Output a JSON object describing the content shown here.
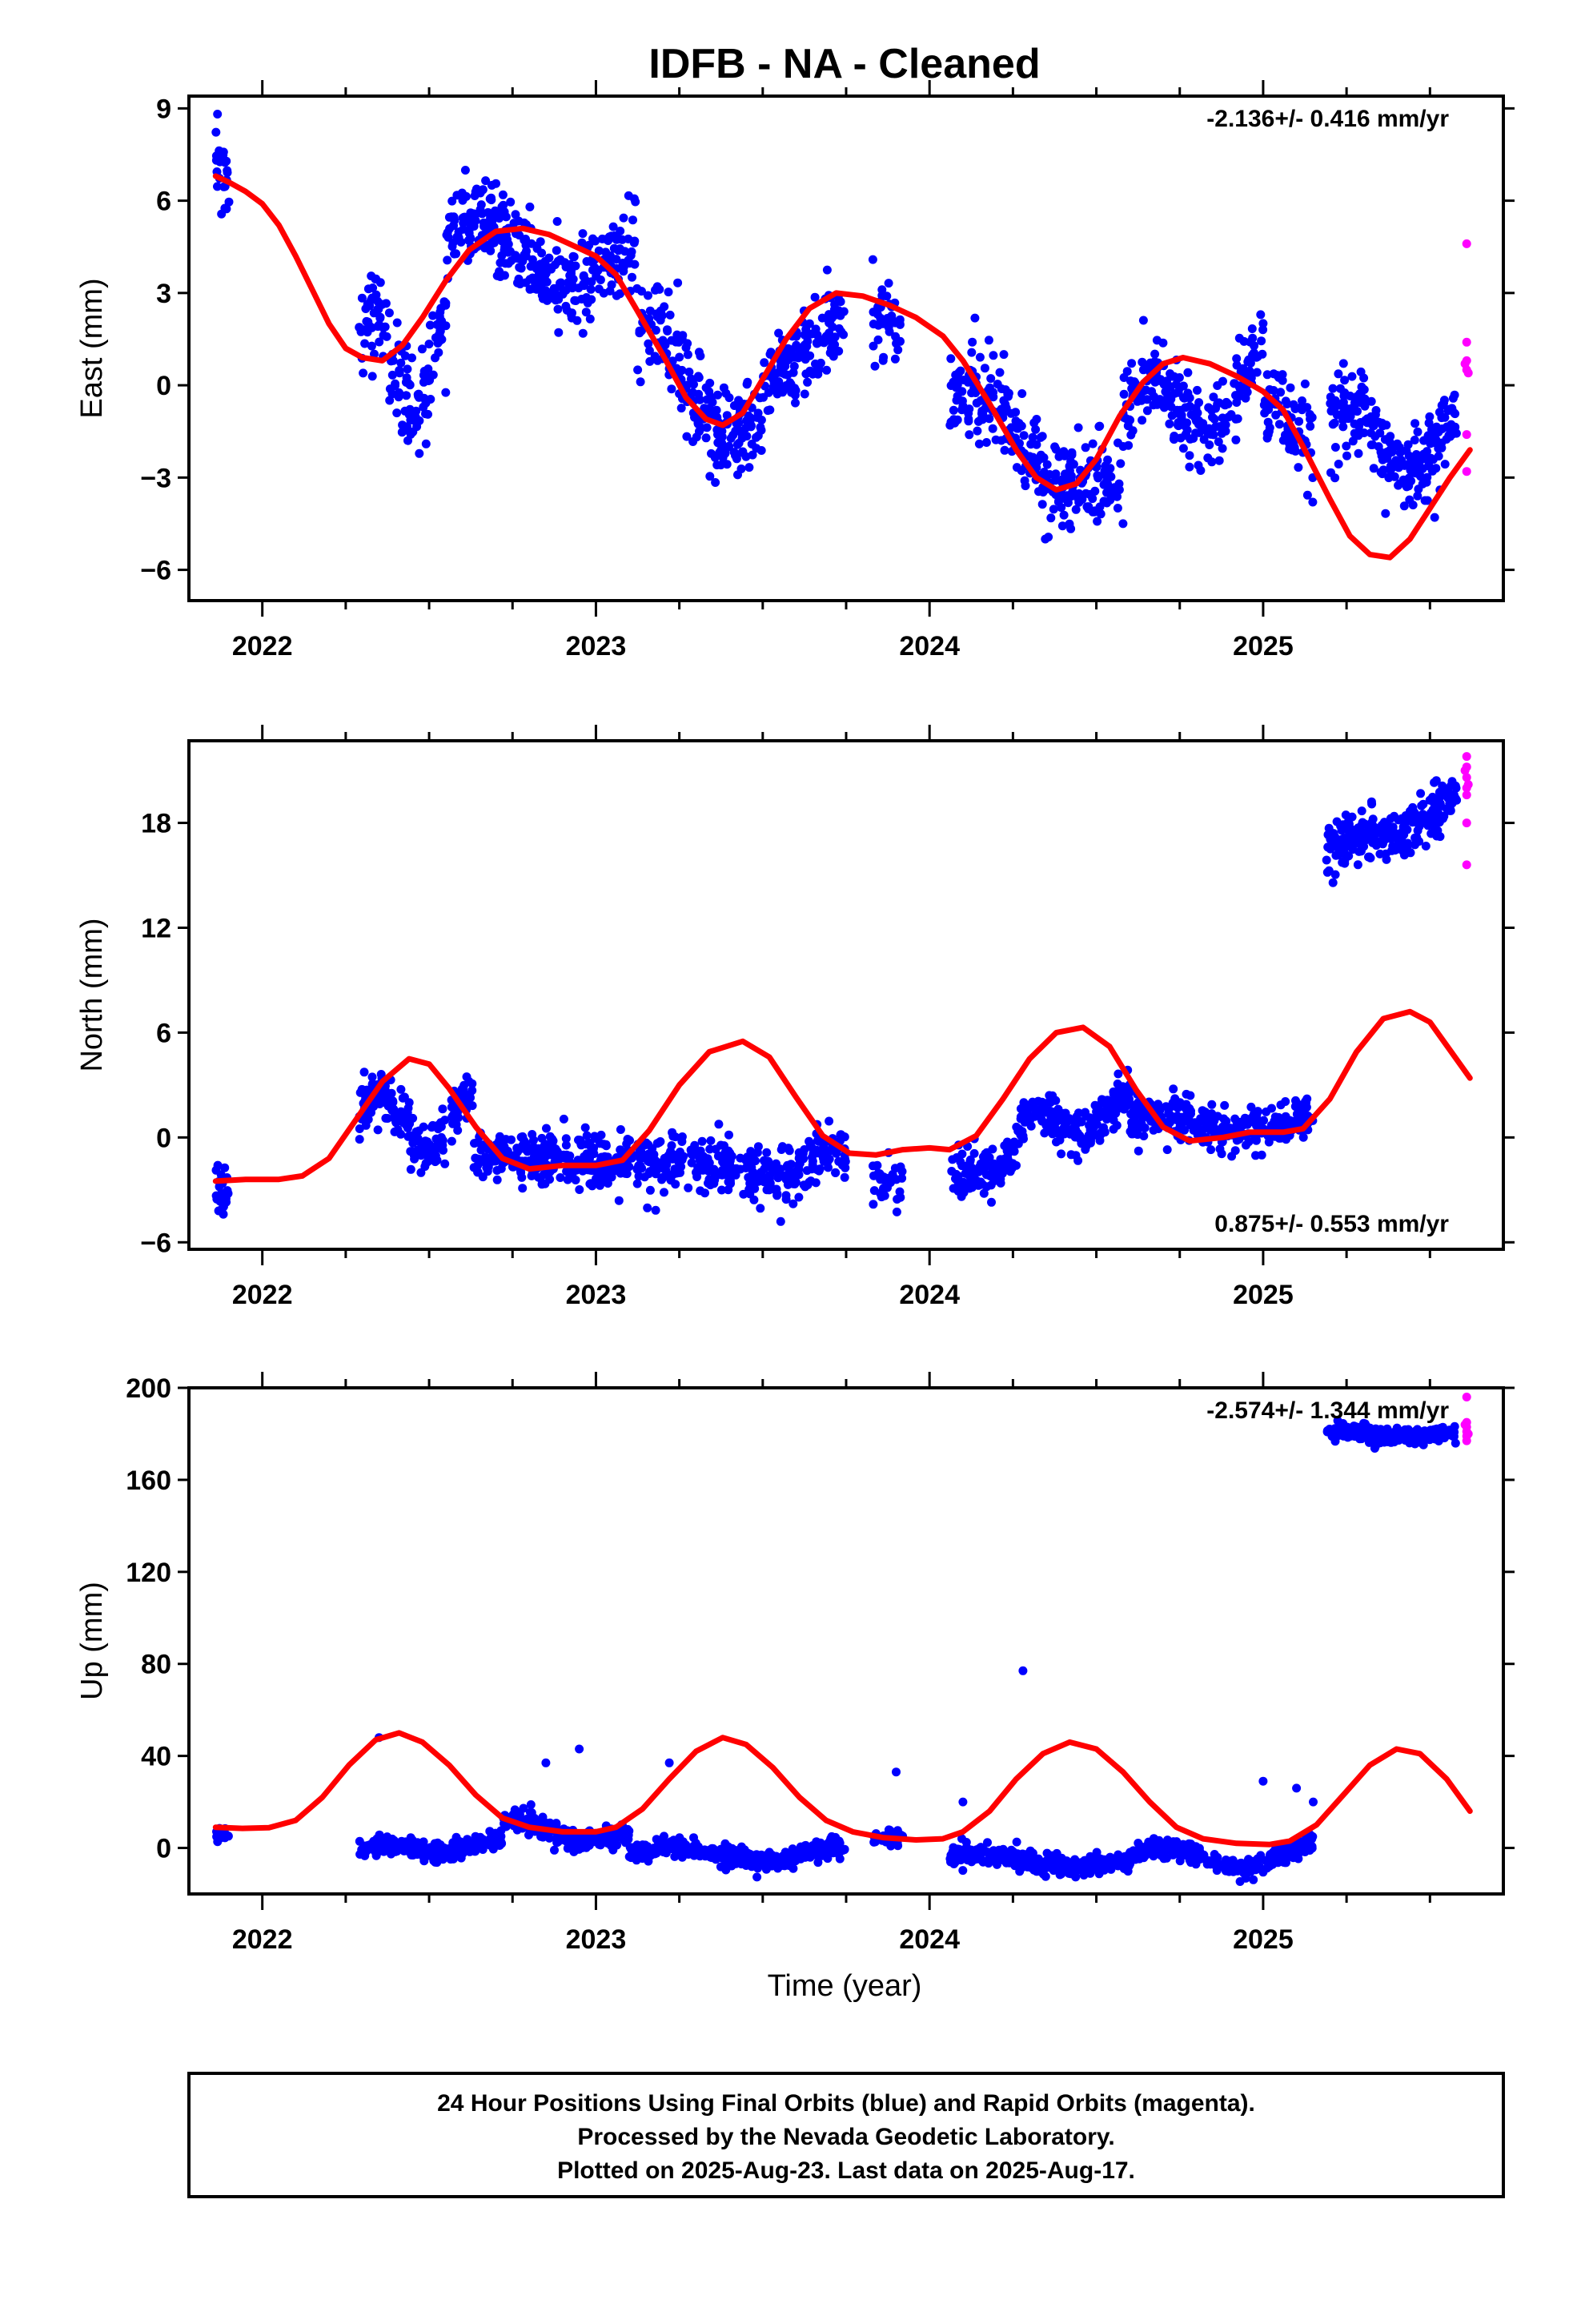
{
  "title": "IDFB  - NA - Cleaned",
  "xlabel": "Time (year)",
  "footer": [
    "24 Hour Positions Using Final Orbits (blue) and Rapid Orbits (magenta).",
    "Processed by the Nevada Geodetic Laboratory.",
    "Plotted on 2025-Aug-23. Last data on 2025-Aug-17."
  ],
  "colors": {
    "final": "#0000ff",
    "rapid": "#ff00ff",
    "model": "#ff0000",
    "frame": "#000000"
  },
  "chart_data": [
    {
      "type": "scatter",
      "ylabel": "East (mm)",
      "rate": "-2.136+/- 0.416 mm/yr",
      "rate_position": "top-right",
      "xlim": [
        2021.78,
        2025.72
      ],
      "ylim": [
        -7,
        9.4
      ],
      "yticks": [
        -6,
        -3,
        0,
        3,
        6,
        9
      ],
      "xticks": [
        2022,
        2023,
        2024,
        2025
      ],
      "model_points": [
        [
          2021.86,
          6.8
        ],
        [
          2021.9,
          6.6
        ],
        [
          2021.95,
          6.3
        ],
        [
          2022.0,
          5.9
        ],
        [
          2022.05,
          5.2
        ],
        [
          2022.1,
          4.2
        ],
        [
          2022.15,
          3.1
        ],
        [
          2022.2,
          2.0
        ],
        [
          2022.25,
          1.2
        ],
        [
          2022.3,
          0.9
        ],
        [
          2022.36,
          0.8
        ],
        [
          2022.42,
          1.3
        ],
        [
          2022.48,
          2.2
        ],
        [
          2022.55,
          3.4
        ],
        [
          2022.62,
          4.4
        ],
        [
          2022.7,
          5.0
        ],
        [
          2022.78,
          5.1
        ],
        [
          2022.86,
          4.9
        ],
        [
          2022.94,
          4.5
        ],
        [
          2023.0,
          4.2
        ],
        [
          2023.06,
          3.6
        ],
        [
          2023.12,
          2.5
        ],
        [
          2023.2,
          1.0
        ],
        [
          2023.27,
          -0.4
        ],
        [
          2023.33,
          -1.1
        ],
        [
          2023.38,
          -1.3
        ],
        [
          2023.44,
          -0.9
        ],
        [
          2023.5,
          0.2
        ],
        [
          2023.57,
          1.5
        ],
        [
          2023.64,
          2.5
        ],
        [
          2023.72,
          3.0
        ],
        [
          2023.8,
          2.9
        ],
        [
          2023.88,
          2.6
        ],
        [
          2023.96,
          2.2
        ],
        [
          2024.04,
          1.6
        ],
        [
          2024.1,
          0.8
        ],
        [
          2024.18,
          -0.6
        ],
        [
          2024.26,
          -2.1
        ],
        [
          2024.32,
          -3.0
        ],
        [
          2024.38,
          -3.4
        ],
        [
          2024.44,
          -3.2
        ],
        [
          2024.5,
          -2.4
        ],
        [
          2024.57,
          -1.0
        ],
        [
          2024.64,
          0.1
        ],
        [
          2024.7,
          0.7
        ],
        [
          2024.76,
          0.9
        ],
        [
          2024.84,
          0.7
        ],
        [
          2024.92,
          0.3
        ],
        [
          2025.0,
          -0.2
        ],
        [
          2025.06,
          -0.8
        ],
        [
          2025.12,
          -2.0
        ],
        [
          2025.2,
          -3.7
        ],
        [
          2025.26,
          -4.9
        ],
        [
          2025.32,
          -5.5
        ],
        [
          2025.38,
          -5.6
        ],
        [
          2025.44,
          -5.0
        ],
        [
          2025.5,
          -4.0
        ],
        [
          2025.56,
          -3.0
        ],
        [
          2025.62,
          -2.1
        ]
      ],
      "final_segments": [
        {
          "x0": 2021.86,
          "x1": 2021.9,
          "base": [
            7.8,
            6.4
          ],
          "amp": 0,
          "noise": 1.3,
          "n": 25
        },
        {
          "x0": 2022.29,
          "x1": 2022.55,
          "base": [
            1.2,
            0.6
          ],
          "amp": 1.4,
          "noise": 1.3,
          "n": 140
        },
        {
          "x0": 2022.55,
          "x1": 2023.12,
          "base": [
            4.6,
            3.8
          ],
          "amp": 0.8,
          "noise": 1.1,
          "n": 330
        },
        {
          "x0": 2023.12,
          "x1": 2023.5,
          "base": [
            1.8,
            -2.0
          ],
          "amp": 0.8,
          "noise": 1.4,
          "n": 200
        },
        {
          "x0": 2023.5,
          "x1": 2023.75,
          "base": [
            -0.2,
            2.2
          ],
          "amp": 0,
          "noise": 1.1,
          "n": 140
        },
        {
          "x0": 2023.83,
          "x1": 2023.92,
          "base": [
            2.5,
            1.3
          ],
          "amp": 0,
          "noise": 1.0,
          "n": 40
        },
        {
          "x0": 2024.06,
          "x1": 2024.58,
          "base": [
            -0.4,
            -3.7
          ],
          "amp": 0.8,
          "noise": 1.3,
          "n": 270
        },
        {
          "x0": 2024.58,
          "x1": 2025.0,
          "base": [
            -1.2,
            0.2
          ],
          "amp": 1.2,
          "noise": 1.0,
          "n": 230
        },
        {
          "x0": 2025.0,
          "x1": 2025.15,
          "base": [
            -0.3,
            -2.0
          ],
          "amp": 0,
          "noise": 1.2,
          "n": 70
        },
        {
          "x0": 2025.2,
          "x1": 2025.58,
          "base": [
            -1.6,
            -2.1
          ],
          "amp": 1.0,
          "noise": 1.1,
          "n": 220
        }
      ],
      "rapid_points": [
        [
          2025.61,
          4.6
        ],
        [
          2025.61,
          1.4
        ],
        [
          2025.61,
          0.8
        ],
        [
          2025.61,
          0.5
        ],
        [
          2025.61,
          -1.6
        ],
        [
          2025.61,
          -2.8
        ],
        [
          2025.605,
          0.7
        ],
        [
          2025.615,
          0.4
        ]
      ]
    },
    {
      "type": "scatter",
      "ylabel": "North (mm)",
      "rate": "0.875+/- 0.553 mm/yr",
      "rate_position": "bottom-right",
      "xlim": [
        2021.78,
        2025.72
      ],
      "ylim": [
        -6.4,
        22.7
      ],
      "yticks": [
        -6,
        0,
        6,
        12,
        18
      ],
      "xticks": [
        2022,
        2023,
        2024,
        2025
      ],
      "model_points": [
        [
          2021.86,
          -2.5
        ],
        [
          2021.95,
          -2.4
        ],
        [
          2022.05,
          -2.4
        ],
        [
          2022.12,
          -2.2
        ],
        [
          2022.2,
          -1.2
        ],
        [
          2022.28,
          1.0
        ],
        [
          2022.36,
          3.2
        ],
        [
          2022.44,
          4.5
        ],
        [
          2022.5,
          4.2
        ],
        [
          2022.56,
          2.8
        ],
        [
          2022.64,
          0.6
        ],
        [
          2022.72,
          -1.2
        ],
        [
          2022.8,
          -1.8
        ],
        [
          2022.9,
          -1.6
        ],
        [
          2023.0,
          -1.6
        ],
        [
          2023.08,
          -1.3
        ],
        [
          2023.16,
          0.4
        ],
        [
          2023.25,
          3.0
        ],
        [
          2023.34,
          4.9
        ],
        [
          2023.44,
          5.5
        ],
        [
          2023.52,
          4.6
        ],
        [
          2023.6,
          2.3
        ],
        [
          2023.68,
          0.1
        ],
        [
          2023.76,
          -0.9
        ],
        [
          2023.84,
          -1.0
        ],
        [
          2023.92,
          -0.7
        ],
        [
          2024.0,
          -0.6
        ],
        [
          2024.06,
          -0.7
        ],
        [
          2024.14,
          0.1
        ],
        [
          2024.22,
          2.2
        ],
        [
          2024.3,
          4.5
        ],
        [
          2024.38,
          6.0
        ],
        [
          2024.46,
          6.3
        ],
        [
          2024.54,
          5.2
        ],
        [
          2024.62,
          2.7
        ],
        [
          2024.7,
          0.6
        ],
        [
          2024.78,
          -0.2
        ],
        [
          2024.88,
          0.0
        ],
        [
          2024.96,
          0.3
        ],
        [
          2025.06,
          0.3
        ],
        [
          2025.12,
          0.5
        ],
        [
          2025.2,
          2.2
        ],
        [
          2025.28,
          4.9
        ],
        [
          2025.36,
          6.8
        ],
        [
          2025.44,
          7.2
        ],
        [
          2025.5,
          6.6
        ],
        [
          2025.56,
          5.0
        ],
        [
          2025.62,
          3.4
        ]
      ],
      "final_segments": [
        {
          "x0": 2021.86,
          "x1": 2021.9,
          "base": [
            -2.8,
            -3.2
          ],
          "amp": 0,
          "noise": 1.4,
          "n": 25
        },
        {
          "x0": 2022.29,
          "x1": 2022.63,
          "base": [
            1.0,
            1.0
          ],
          "amp": 1.6,
          "noise": 1.2,
          "n": 190
        },
        {
          "x0": 2022.63,
          "x1": 2023.15,
          "base": [
            -1.0,
            -1.4
          ],
          "amp": 0,
          "noise": 1.2,
          "n": 290
        },
        {
          "x0": 2023.15,
          "x1": 2023.75,
          "base": [
            -2.0,
            -1.2
          ],
          "amp": 0.5,
          "noise": 1.3,
          "n": 310
        },
        {
          "x0": 2023.83,
          "x1": 2023.92,
          "base": [
            -2.3,
            -3.3
          ],
          "amp": 0,
          "noise": 1.2,
          "n": 35
        },
        {
          "x0": 2024.06,
          "x1": 2024.26,
          "base": [
            -2.4,
            -1.4
          ],
          "amp": 0,
          "noise": 1.2,
          "n": 110
        },
        {
          "x0": 2024.26,
          "x1": 2024.6,
          "base": [
            0.2,
            1.8
          ],
          "amp": 1.0,
          "noise": 1.1,
          "n": 200
        },
        {
          "x0": 2024.6,
          "x1": 2025.15,
          "base": [
            0.8,
            0.8
          ],
          "amp": 0.4,
          "noise": 1.0,
          "n": 300
        },
        {
          "x0": 2025.19,
          "x1": 2025.58,
          "base": [
            16.0,
            19.2
          ],
          "amp": 0.6,
          "noise": 1.2,
          "n": 230
        }
      ],
      "rapid_points": [
        [
          2025.61,
          21.8
        ],
        [
          2025.61,
          21.2
        ],
        [
          2025.61,
          20.6
        ],
        [
          2025.61,
          20.0
        ],
        [
          2025.61,
          19.6
        ],
        [
          2025.61,
          18.0
        ],
        [
          2025.61,
          15.6
        ],
        [
          2025.605,
          21.0
        ],
        [
          2025.615,
          20.2
        ]
      ]
    },
    {
      "type": "scatter",
      "ylabel": "Up (mm)",
      "rate": "-2.574+/- 1.344 mm/yr",
      "rate_position": "top-right",
      "xlim": [
        2021.78,
        2025.72
      ],
      "ylim": [
        -20,
        200
      ],
      "yticks": [
        0,
        40,
        80,
        120,
        160,
        200
      ],
      "xticks": [
        2022,
        2023,
        2024,
        2025
      ],
      "model_points": [
        [
          2021.86,
          9
        ],
        [
          2021.94,
          8.5
        ],
        [
          2022.02,
          8.8
        ],
        [
          2022.1,
          12
        ],
        [
          2022.18,
          22
        ],
        [
          2022.26,
          36
        ],
        [
          2022.34,
          47
        ],
        [
          2022.41,
          50
        ],
        [
          2022.48,
          46
        ],
        [
          2022.56,
          36
        ],
        [
          2022.64,
          23
        ],
        [
          2022.72,
          13
        ],
        [
          2022.8,
          9
        ],
        [
          2022.9,
          7
        ],
        [
          2023.0,
          7
        ],
        [
          2023.06,
          9
        ],
        [
          2023.14,
          17
        ],
        [
          2023.22,
          30
        ],
        [
          2023.3,
          42
        ],
        [
          2023.38,
          48
        ],
        [
          2023.45,
          45
        ],
        [
          2023.53,
          35
        ],
        [
          2023.61,
          22
        ],
        [
          2023.69,
          12
        ],
        [
          2023.77,
          7
        ],
        [
          2023.86,
          4.5
        ],
        [
          2023.96,
          3.5
        ],
        [
          2024.04,
          4
        ],
        [
          2024.1,
          7
        ],
        [
          2024.18,
          16
        ],
        [
          2024.26,
          30
        ],
        [
          2024.34,
          41
        ],
        [
          2024.42,
          46
        ],
        [
          2024.5,
          43
        ],
        [
          2024.58,
          33
        ],
        [
          2024.66,
          20
        ],
        [
          2024.74,
          9
        ],
        [
          2024.82,
          4
        ],
        [
          2024.92,
          2
        ],
        [
          2025.02,
          1.5
        ],
        [
          2025.08,
          3
        ],
        [
          2025.16,
          10
        ],
        [
          2025.24,
          23
        ],
        [
          2025.32,
          36
        ],
        [
          2025.4,
          43
        ],
        [
          2025.47,
          41
        ],
        [
          2025.55,
          30
        ],
        [
          2025.62,
          16
        ]
      ],
      "final_segments": [
        {
          "x0": 2021.86,
          "x1": 2021.9,
          "base": [
            6,
            6
          ],
          "amp": 0,
          "noise": 3,
          "n": 20
        },
        {
          "x0": 2022.29,
          "x1": 2022.72,
          "base": [
            -2,
            2
          ],
          "amp": 2,
          "noise": 3.5,
          "n": 250
        },
        {
          "x0": 2022.72,
          "x1": 2023.1,
          "base": [
            10,
            3
          ],
          "amp": 3,
          "noise": 4,
          "n": 230
        },
        {
          "x0": 2023.1,
          "x1": 2023.75,
          "base": [
            -3,
            -2
          ],
          "amp": 3,
          "noise": 3.5,
          "n": 340
        },
        {
          "x0": 2023.83,
          "x1": 2023.92,
          "base": [
            4,
            5
          ],
          "amp": 0,
          "noise": 3,
          "n": 35
        },
        {
          "x0": 2024.06,
          "x1": 2024.6,
          "base": [
            -4,
            -7
          ],
          "amp": 2,
          "noise": 3.5,
          "n": 310
        },
        {
          "x0": 2024.6,
          "x1": 2025.15,
          "base": [
            -5,
            -3
          ],
          "amp": 5,
          "noise": 3.5,
          "n": 300
        },
        {
          "x0": 2025.19,
          "x1": 2025.58,
          "base": [
            180,
            179
          ],
          "amp": 1,
          "noise": 3,
          "n": 240
        }
      ],
      "final_outliers": [
        [
          2022.35,
          48
        ],
        [
          2022.85,
          37
        ],
        [
          2022.95,
          43
        ],
        [
          2023.22,
          37
        ],
        [
          2023.9,
          33
        ],
        [
          2024.1,
          20
        ],
        [
          2024.28,
          77
        ],
        [
          2025.0,
          29
        ],
        [
          2025.1,
          26
        ],
        [
          2025.15,
          20
        ]
      ],
      "rapid_points": [
        [
          2025.61,
          196
        ],
        [
          2025.61,
          185
        ],
        [
          2025.61,
          183
        ],
        [
          2025.61,
          181
        ],
        [
          2025.61,
          179
        ],
        [
          2025.61,
          177
        ],
        [
          2025.605,
          184
        ],
        [
          2025.615,
          180
        ]
      ]
    }
  ]
}
